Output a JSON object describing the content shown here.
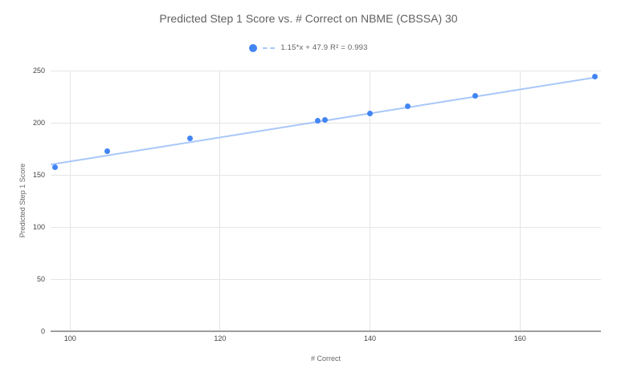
{
  "chart_data": {
    "type": "scatter",
    "title": "Predicted Step 1 Score vs. # Correct on NBME (CBSSA) 30",
    "xlabel": "# Correct",
    "ylabel": "Predicted Step 1 Score",
    "x": [
      98,
      105,
      116,
      133,
      134,
      140,
      145,
      154,
      170
    ],
    "y": [
      157,
      173,
      185,
      202,
      203,
      209,
      216,
      226,
      244
    ],
    "xlim": [
      97.4,
      170.8
    ],
    "ylim": [
      0,
      250
    ],
    "x_ticks": [
      100,
      120,
      140,
      160
    ],
    "y_ticks": [
      0,
      50,
      100,
      150,
      200,
      250
    ],
    "grid": true,
    "legend_position": "top",
    "trendline": {
      "label": "1.15*x + 47.9 R² = 0.993",
      "slope": 1.15,
      "intercept": 47.9,
      "r2": 0.993,
      "x_start": 97.4,
      "x_end": 170
    },
    "colors": {
      "point": "#4285f4",
      "trendline": "#a8c7fa",
      "grid": "#e5e5e5",
      "axis_line": "#9e9e9e",
      "tick_label": "#444444",
      "axis_title": "#666666",
      "title": "#616161"
    }
  }
}
